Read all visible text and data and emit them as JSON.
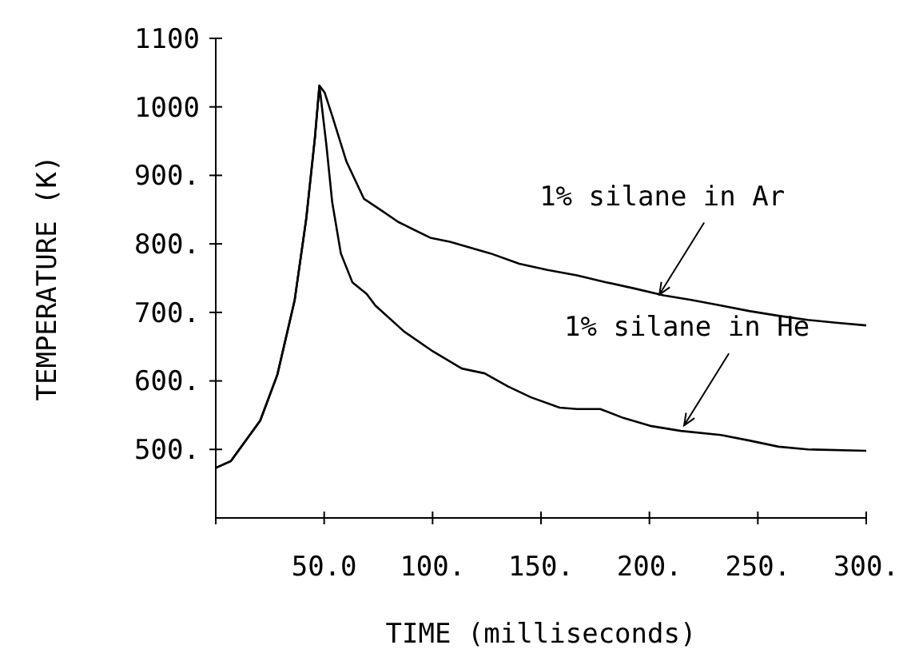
{
  "chart_data": {
    "type": "line",
    "xlabel": "TIME (milliseconds)",
    "ylabel": "TEMPERATURE (K)",
    "xlim": [
      0,
      300
    ],
    "ylim": [
      400,
      1100
    ],
    "xticks": [
      {
        "value": 50,
        "label": "50.0"
      },
      {
        "value": 100,
        "label": "100."
      },
      {
        "value": 150,
        "label": "150."
      },
      {
        "value": 200,
        "label": "200."
      },
      {
        "value": 250,
        "label": "250."
      },
      {
        "value": 300,
        "label": "300."
      }
    ],
    "yticks": [
      {
        "value": 500,
        "label": "500."
      },
      {
        "value": 600,
        "label": "600."
      },
      {
        "value": 700,
        "label": "700."
      },
      {
        "value": 800,
        "label": "800."
      },
      {
        "value": 900,
        "label": "900."
      },
      1000,
      1100
    ],
    "grid": false,
    "line_style": "solid",
    "marker": "none",
    "series": [
      {
        "color": "#000000",
        "x": [
          0,
          7,
          20.5,
          28.4,
          36.4,
          41.7,
          45.7,
          47.8,
          50.2,
          53.7,
          60.3,
          68.3,
          76.3,
          84.2,
          98.9,
          108,
          126.8,
          140,
          153,
          166.6,
          180,
          193,
          206.5,
          219.8,
          233,
          246,
          259.6,
          273,
          286,
          300
        ],
        "values": [
          473,
          483,
          542,
          609,
          718,
          836,
          954,
          1031,
          1021,
          987,
          920,
          866,
          849,
          832,
          809,
          803,
          786,
          771,
          762,
          754,
          744,
          735,
          725,
          718,
          710,
          702,
          695,
          689,
          685,
          681
        ]
      },
      {
        "color": "#000000",
        "x": [
          0,
          7,
          20.5,
          28.4,
          36.4,
          41.7,
          45.7,
          47.8,
          51,
          53.7,
          57.7,
          63,
          69.6,
          73.6,
          86.9,
          100.2,
          113.5,
          124,
          134.7,
          145.4,
          158.6,
          166.6,
          177.3,
          187.9,
          201,
          214.5,
          233,
          246,
          259.6,
          273,
          300
        ],
        "values": [
          473,
          483,
          542,
          609,
          718,
          836,
          954,
          1031,
          945,
          861,
          786,
          744,
          727,
          710,
          672,
          643,
          618,
          611,
          592,
          576,
          561,
          559,
          559,
          546,
          534,
          527,
          521,
          513,
          504,
          500,
          498
        ]
      }
    ],
    "annotations": [
      {
        "text": "1% silane in Ar",
        "x": 204.6,
        "y": 726
      },
      {
        "text": "1% silane in He",
        "x": 216,
        "y": 535
      }
    ]
  }
}
